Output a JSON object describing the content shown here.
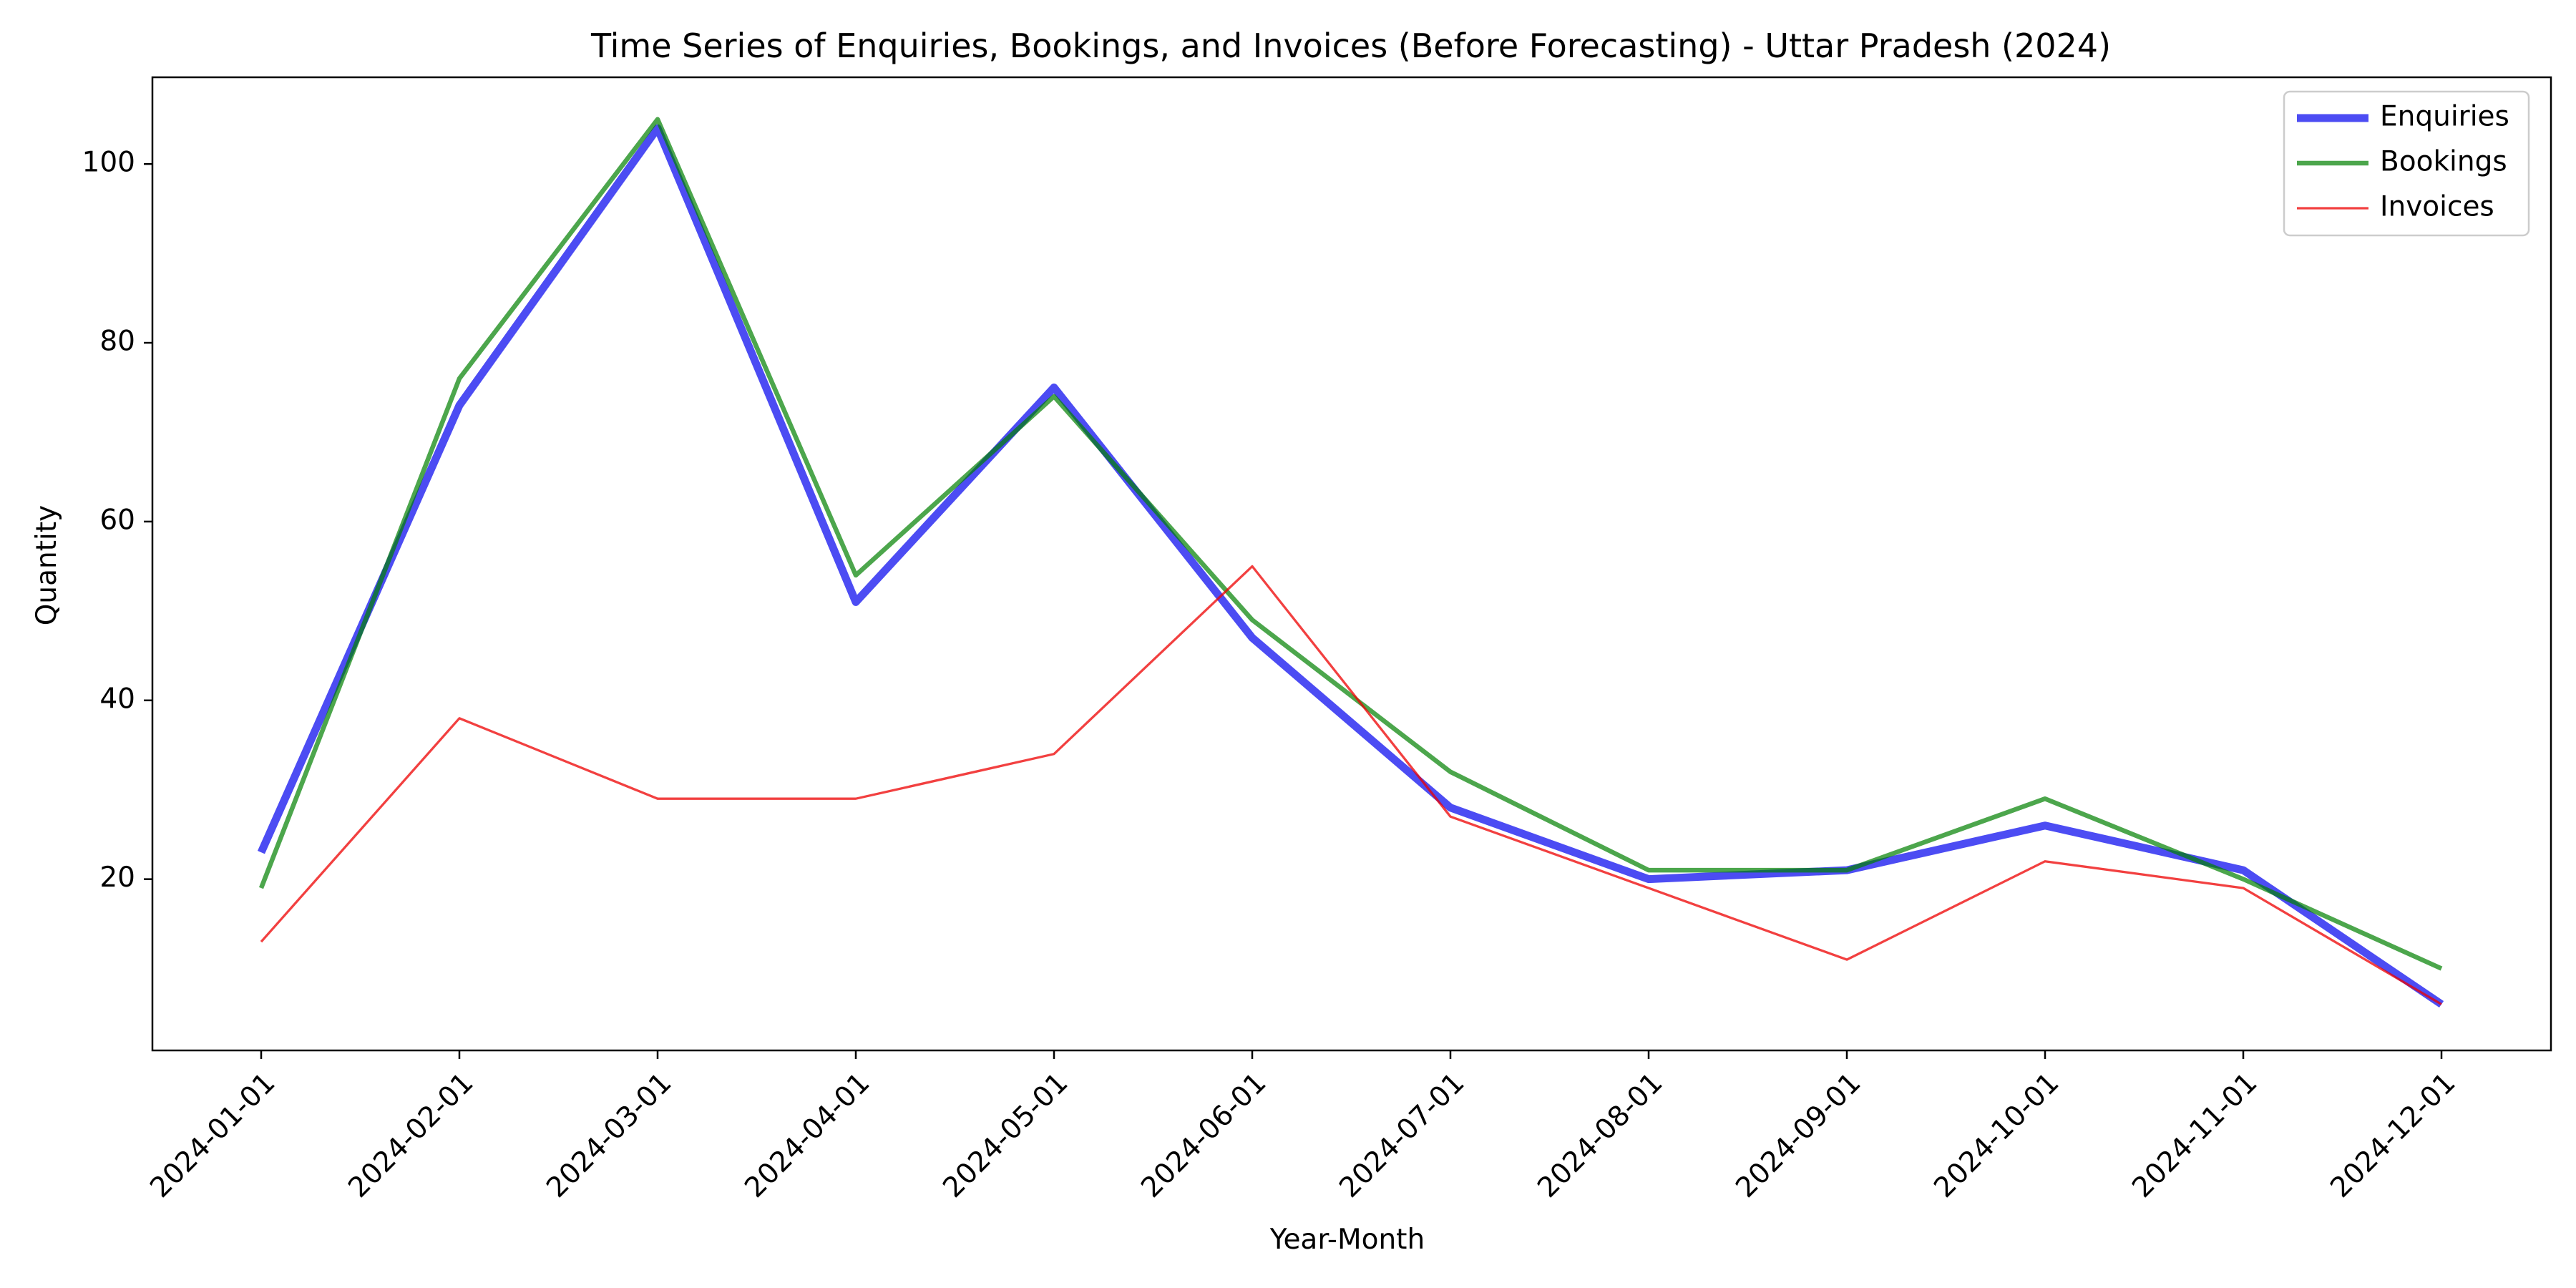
{
  "chart_data": {
    "type": "line",
    "title": "Time Series of Enquiries, Bookings, and Invoices (Before Forecasting) - Uttar Pradesh (2024)",
    "xlabel": "Year-Month",
    "ylabel": "Quantity",
    "categories": [
      "2024-01-01",
      "2024-02-01",
      "2024-03-01",
      "2024-04-01",
      "2024-05-01",
      "2024-06-01",
      "2024-07-01",
      "2024-08-01",
      "2024-09-01",
      "2024-10-01",
      "2024-11-01",
      "2024-12-01"
    ],
    "ylim": [
      1.1,
      110
    ],
    "yticks": [
      20,
      40,
      60,
      80,
      100
    ],
    "grid": false,
    "legend_position": "top-right",
    "series": [
      {
        "name": "Enquiries",
        "color": "#0000ee",
        "values": [
          23,
          73,
          104,
          51,
          75,
          47,
          28,
          20,
          21,
          26,
          21,
          6
        ]
      },
      {
        "name": "Bookings",
        "color": "#008000",
        "values": [
          19,
          76,
          105,
          54,
          74,
          49,
          32,
          21,
          21,
          29,
          20,
          10
        ]
      },
      {
        "name": "Invoices",
        "color": "#ee0000",
        "values": [
          13,
          38,
          29,
          29,
          34,
          55,
          27,
          19,
          11,
          22,
          19,
          6
        ]
      }
    ]
  }
}
